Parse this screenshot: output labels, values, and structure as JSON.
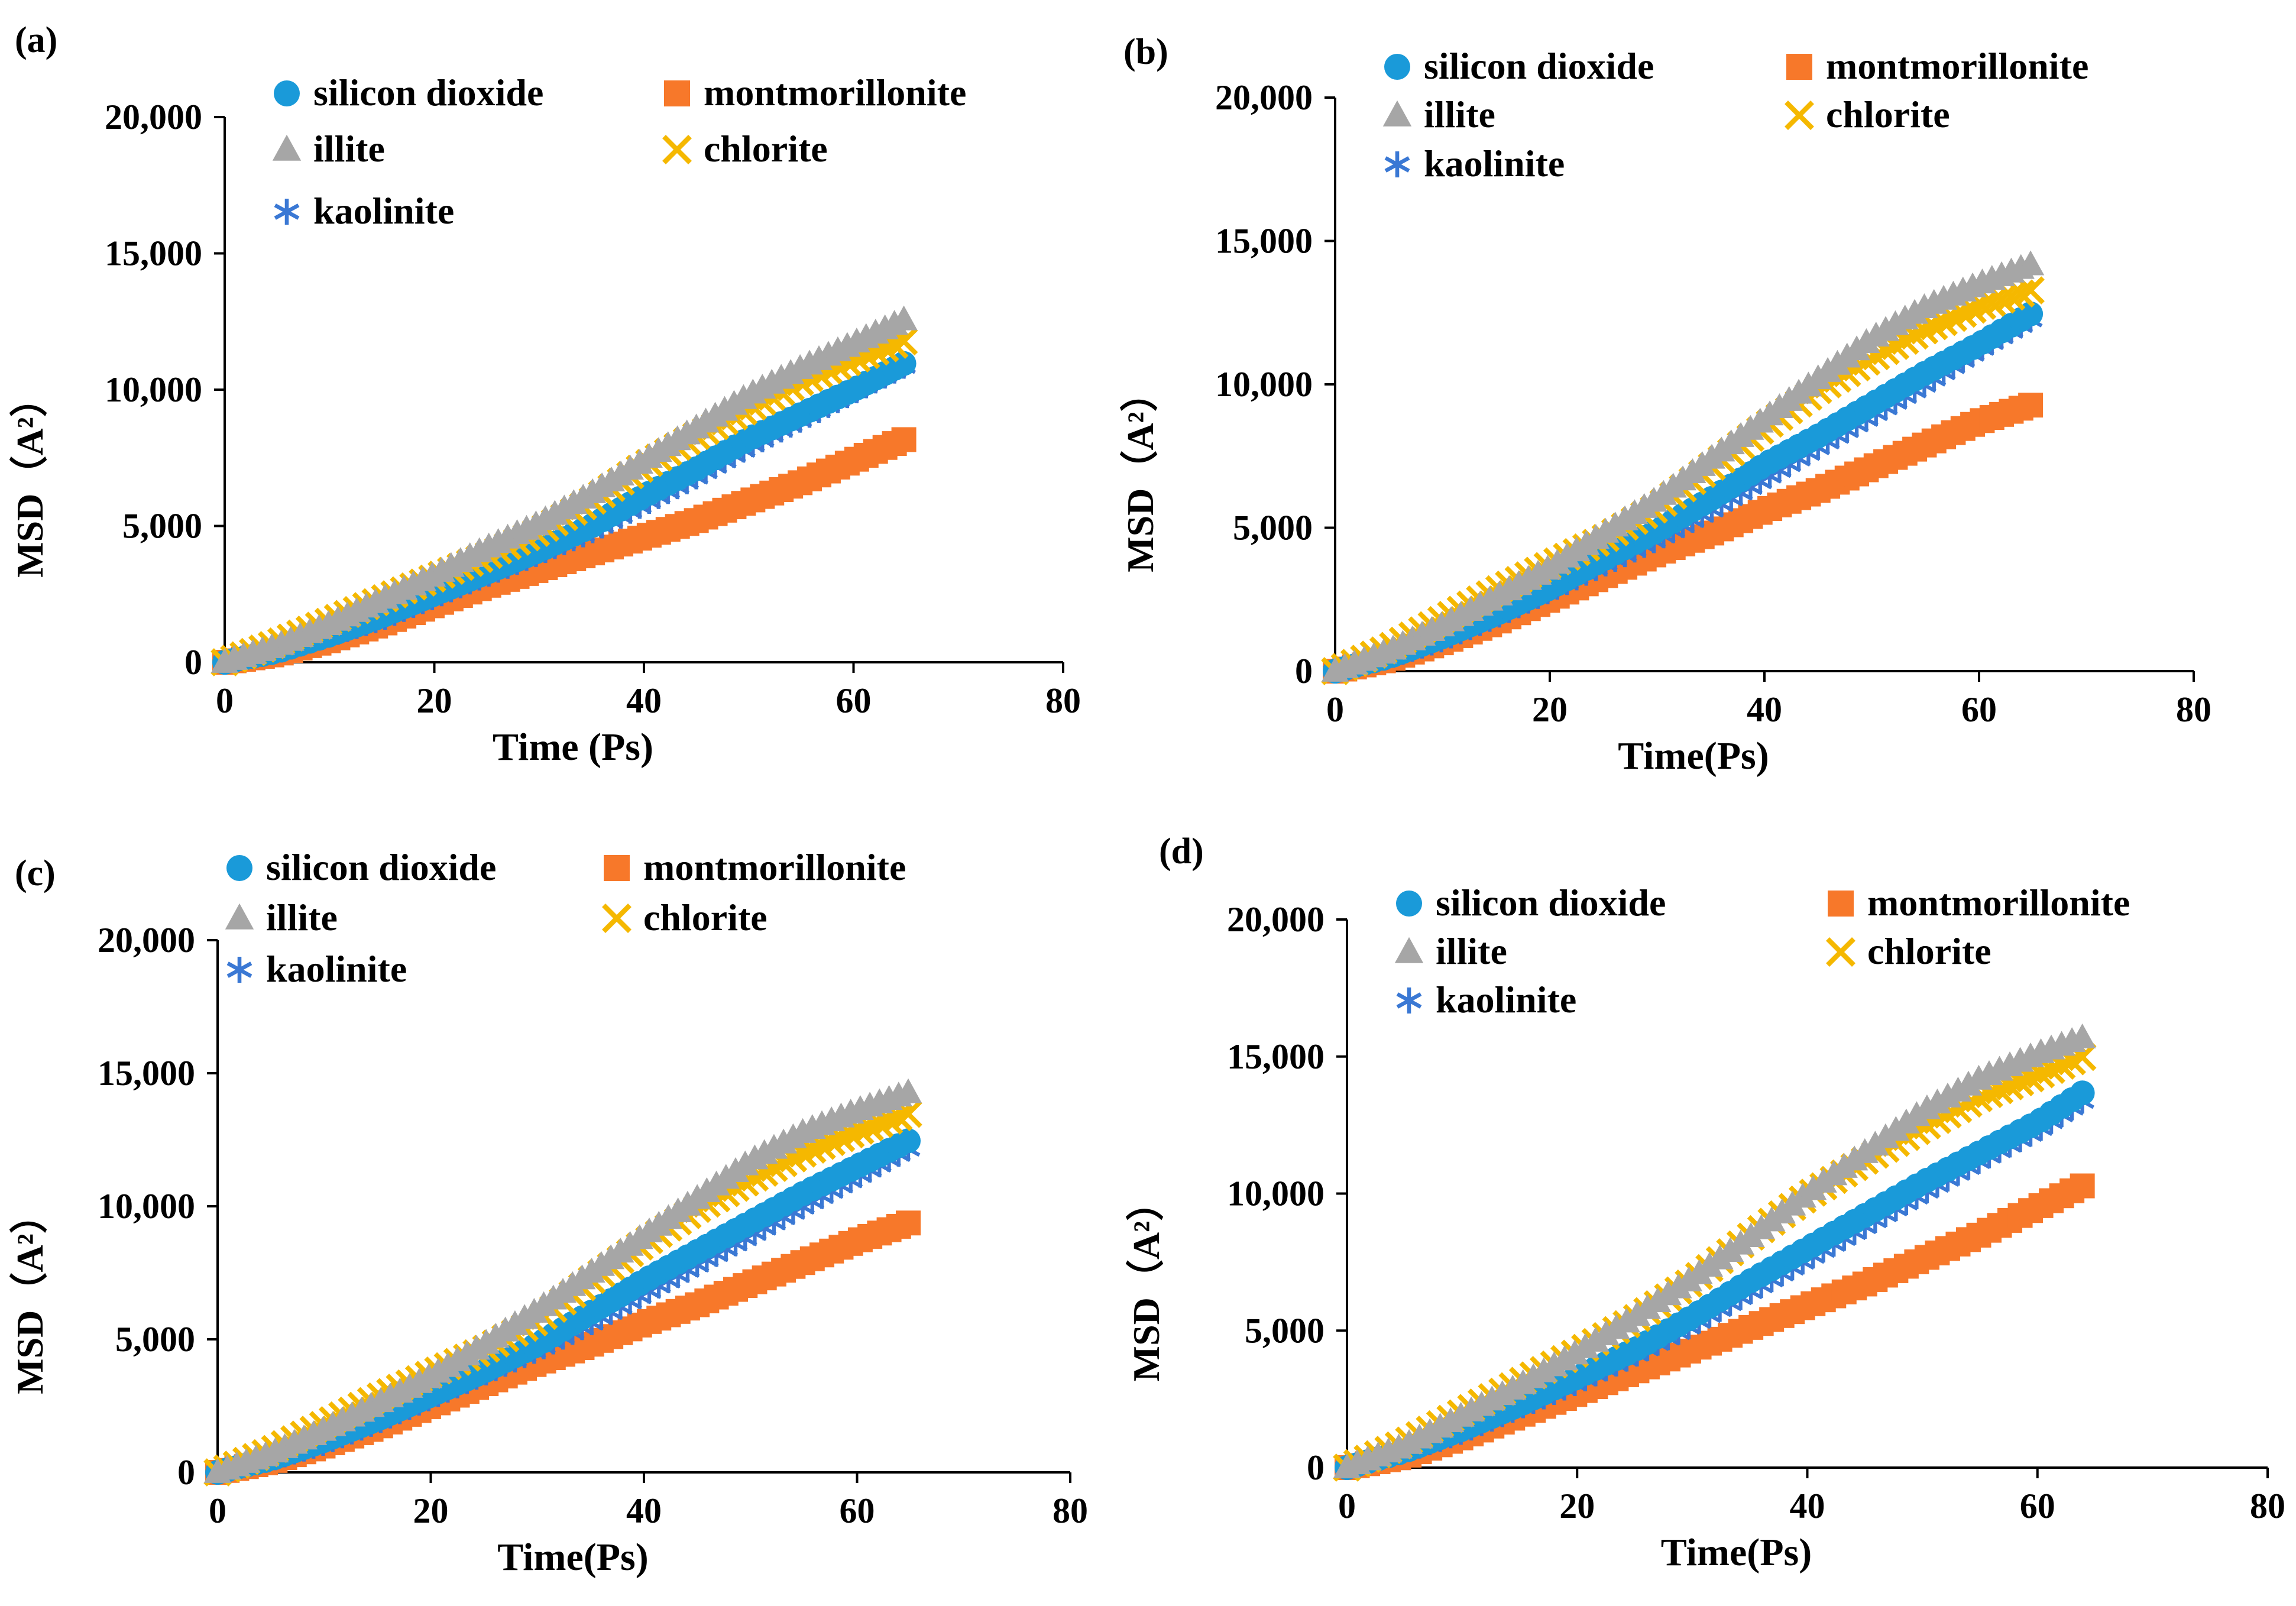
{
  "figure": {
    "series_styles": [
      {
        "name": "silicon dioxide",
        "marker": "circle",
        "color": "#1a9ad9"
      },
      {
        "name": "montmorillonite",
        "marker": "square",
        "color": "#f7782a"
      },
      {
        "name": "illite",
        "marker": "triangle",
        "color": "#a6a6a6"
      },
      {
        "name": "chlorite",
        "marker": "x",
        "color": "#f5b800"
      },
      {
        "name": "kaolinite",
        "marker": "asterisk",
        "color": "#3a78d4"
      }
    ]
  },
  "chart_data": [
    {
      "panel_label": "(a)",
      "type": "scatter",
      "xlabel": "Time (Ps)",
      "ylabel": "MSD（A²）",
      "xlim": [
        0,
        80
      ],
      "ylim": [
        0,
        20000
      ],
      "xticks": [
        0,
        20,
        40,
        60,
        80
      ],
      "yticks": [
        0,
        5000,
        10000,
        15000,
        20000
      ],
      "xtick_labels": [
        "0",
        "20",
        "40",
        "60",
        "80"
      ],
      "ytick_labels": [
        "0",
        "5,000",
        "10,000",
        "15,000",
        "20,000"
      ],
      "legend": "top",
      "series": [
        {
          "name": "silicon dioxide",
          "x": [
            0,
            5,
            10,
            15,
            20,
            25,
            30,
            35,
            40,
            45,
            50,
            55,
            60,
            65
          ],
          "y": [
            0,
            400,
            1000,
            1700,
            2500,
            3300,
            4100,
            5000,
            6100,
            7100,
            8200,
            9100,
            10000,
            11000
          ]
        },
        {
          "name": "montmorillonite",
          "x": [
            0,
            5,
            10,
            15,
            20,
            25,
            30,
            35,
            40,
            45,
            50,
            55,
            60,
            65
          ],
          "y": [
            0,
            300,
            800,
            1400,
            2100,
            2800,
            3400,
            4000,
            4600,
            5200,
            5900,
            6600,
            7400,
            8200
          ]
        },
        {
          "name": "illite",
          "x": [
            0,
            5,
            10,
            15,
            20,
            25,
            30,
            35,
            40,
            45,
            50,
            55,
            60,
            65
          ],
          "y": [
            0,
            600,
            1400,
            2300,
            3200,
            4200,
            5100,
            6200,
            7400,
            8600,
            9800,
            10800,
            11700,
            12600
          ]
        },
        {
          "name": "chlorite",
          "x": [
            0,
            5,
            10,
            15,
            20,
            25,
            30,
            35,
            40,
            45,
            50,
            55,
            60,
            65
          ],
          "y": [
            0,
            700,
            1500,
            2300,
            3100,
            3900,
            4800,
            5900,
            7200,
            8300,
            9300,
            10300,
            11100,
            11800
          ]
        },
        {
          "name": "kaolinite",
          "x": [
            0,
            5,
            10,
            15,
            20,
            25,
            30,
            35,
            40,
            45,
            50,
            55,
            60,
            65
          ],
          "y": [
            0,
            400,
            1000,
            1600,
            2400,
            3200,
            4000,
            4800,
            5800,
            6800,
            7900,
            8900,
            9900,
            10900
          ]
        }
      ]
    },
    {
      "panel_label": "(b)",
      "type": "scatter",
      "xlabel": "Time(Ps)",
      "ylabel": "MSD（A²）",
      "xlim": [
        0,
        80
      ],
      "ylim": [
        0,
        20000
      ],
      "xticks": [
        0,
        20,
        40,
        60,
        80
      ],
      "yticks": [
        0,
        5000,
        10000,
        15000,
        20000
      ],
      "xtick_labels": [
        "0",
        "20",
        "40",
        "60",
        "80"
      ],
      "ytick_labels": [
        "0",
        "5,000",
        "10,000",
        "15,000",
        "20,000"
      ],
      "legend": "top",
      "series": [
        {
          "name": "silicon dioxide",
          "x": [
            0,
            5,
            10,
            15,
            20,
            25,
            30,
            35,
            40,
            45,
            50,
            55,
            60,
            65
          ],
          "y": [
            0,
            500,
            1200,
            2000,
            2900,
            3900,
            4900,
            6000,
            7200,
            8200,
            9300,
            10400,
            11400,
            12500
          ]
        },
        {
          "name": "montmorillonite",
          "x": [
            0,
            5,
            10,
            15,
            20,
            25,
            30,
            35,
            40,
            45,
            50,
            55,
            60,
            65
          ],
          "y": [
            0,
            400,
            1000,
            1700,
            2500,
            3300,
            4100,
            4800,
            5600,
            6300,
            7100,
            7900,
            8700,
            9300
          ]
        },
        {
          "name": "illite",
          "x": [
            0,
            5,
            10,
            15,
            20,
            25,
            30,
            35,
            40,
            45,
            50,
            55,
            60,
            65
          ],
          "y": [
            0,
            700,
            1600,
            2600,
            3600,
            4800,
            6000,
            7400,
            8800,
            10200,
            11600,
            12700,
            13500,
            14200
          ]
        },
        {
          "name": "chlorite",
          "x": [
            0,
            5,
            10,
            15,
            20,
            25,
            30,
            35,
            40,
            45,
            50,
            55,
            60,
            65
          ],
          "y": [
            0,
            800,
            1800,
            2800,
            3700,
            4600,
            5700,
            7100,
            8500,
            9800,
            10900,
            11900,
            12700,
            13300
          ]
        },
        {
          "name": "kaolinite",
          "x": [
            0,
            5,
            10,
            15,
            20,
            25,
            30,
            35,
            40,
            45,
            50,
            55,
            60,
            65
          ],
          "y": [
            0,
            500,
            1100,
            1900,
            2800,
            3700,
            4600,
            5600,
            6700,
            7800,
            8900,
            10000,
            11200,
            12300
          ]
        }
      ]
    },
    {
      "panel_label": "(c)",
      "type": "scatter",
      "xlabel": "Time(Ps)",
      "ylabel": "MSD（A²）",
      "xlim": [
        0,
        80
      ],
      "ylim": [
        0,
        20000
      ],
      "xticks": [
        0,
        20,
        40,
        60,
        80
      ],
      "yticks": [
        0,
        5000,
        10000,
        15000,
        20000
      ],
      "xtick_labels": [
        "0",
        "20",
        "40",
        "60",
        "80"
      ],
      "ytick_labels": [
        "0",
        "5,000",
        "10,000",
        "15,000",
        "20,000"
      ],
      "legend": "top",
      "series": [
        {
          "name": "silicon dioxide",
          "x": [
            0,
            5,
            10,
            15,
            20,
            25,
            30,
            35,
            40,
            45,
            50,
            55,
            60,
            65
          ],
          "y": [
            0,
            500,
            1200,
            2000,
            2900,
            3800,
            4800,
            6000,
            7200,
            8300,
            9400,
            10500,
            11500,
            12500
          ]
        },
        {
          "name": "montmorillonite",
          "x": [
            0,
            5,
            10,
            15,
            20,
            25,
            30,
            35,
            40,
            45,
            50,
            55,
            60,
            65
          ],
          "y": [
            0,
            400,
            1000,
            1700,
            2500,
            3300,
            4100,
            4800,
            5600,
            6300,
            7100,
            7900,
            8700,
            9400
          ]
        },
        {
          "name": "illite",
          "x": [
            0,
            5,
            10,
            15,
            20,
            25,
            30,
            35,
            40,
            45,
            50,
            55,
            60,
            65
          ],
          "y": [
            0,
            700,
            1600,
            2600,
            3600,
            4800,
            6100,
            7500,
            8900,
            10300,
            11700,
            12800,
            13600,
            14300
          ]
        },
        {
          "name": "chlorite",
          "x": [
            0,
            5,
            10,
            15,
            20,
            25,
            30,
            35,
            40,
            45,
            50,
            55,
            60,
            65
          ],
          "y": [
            0,
            800,
            1800,
            2800,
            3700,
            4600,
            5700,
            7200,
            8600,
            9900,
            11000,
            12000,
            12800,
            13500
          ]
        },
        {
          "name": "kaolinite",
          "x": [
            0,
            5,
            10,
            15,
            20,
            25,
            30,
            35,
            40,
            45,
            50,
            55,
            60,
            65
          ],
          "y": [
            0,
            500,
            1100,
            1900,
            2800,
            3700,
            4600,
            5600,
            6700,
            7800,
            8900,
            10000,
            11100,
            12200
          ]
        }
      ]
    },
    {
      "panel_label": "(d)",
      "type": "scatter",
      "xlabel": "Time(Ps)",
      "ylabel": "MSD（A²）",
      "xlim": [
        0,
        80
      ],
      "ylim": [
        0,
        20000
      ],
      "xticks": [
        0,
        20,
        40,
        60,
        80
      ],
      "yticks": [
        0,
        5000,
        10000,
        15000,
        20000
      ],
      "xtick_labels": [
        "0",
        "20",
        "40",
        "60",
        "80"
      ],
      "ytick_labels": [
        "0",
        "5,000",
        "10,000",
        "15,000",
        "20,000"
      ],
      "legend": "top",
      "series": [
        {
          "name": "silicon dioxide",
          "x": [
            0,
            5,
            10,
            15,
            20,
            25,
            30,
            35,
            40,
            45,
            50,
            55,
            60,
            64
          ],
          "y": [
            0,
            600,
            1400,
            2300,
            3300,
            4300,
            5500,
            6800,
            8000,
            9200,
            10400,
            11500,
            12600,
            13700
          ]
        },
        {
          "name": "montmorillonite",
          "x": [
            0,
            5,
            10,
            15,
            20,
            25,
            30,
            35,
            40,
            45,
            50,
            55,
            60,
            64
          ],
          "y": [
            0,
            400,
            1100,
            1900,
            2700,
            3500,
            4300,
            5100,
            5900,
            6700,
            7600,
            8500,
            9500,
            10300
          ]
        },
        {
          "name": "illite",
          "x": [
            0,
            5,
            10,
            15,
            20,
            25,
            30,
            35,
            40,
            45,
            50,
            55,
            60,
            64
          ],
          "y": [
            0,
            800,
            1900,
            3000,
            4200,
            5500,
            6900,
            8400,
            10000,
            11500,
            13000,
            14200,
            15100,
            15700
          ]
        },
        {
          "name": "chlorite",
          "x": [
            0,
            5,
            10,
            15,
            20,
            25,
            30,
            35,
            40,
            45,
            50,
            55,
            60,
            64
          ],
          "y": [
            0,
            900,
            2000,
            3100,
            4200,
            5400,
            6800,
            8400,
            9900,
            11200,
            12400,
            13500,
            14300,
            15000
          ]
        },
        {
          "name": "kaolinite",
          "x": [
            0,
            5,
            10,
            15,
            20,
            25,
            30,
            35,
            40,
            45,
            50,
            55,
            60,
            64
          ],
          "y": [
            0,
            600,
            1300,
            2200,
            3100,
            4100,
            5200,
            6400,
            7600,
            8800,
            10000,
            11200,
            12300,
            13400
          ]
        }
      ]
    }
  ]
}
